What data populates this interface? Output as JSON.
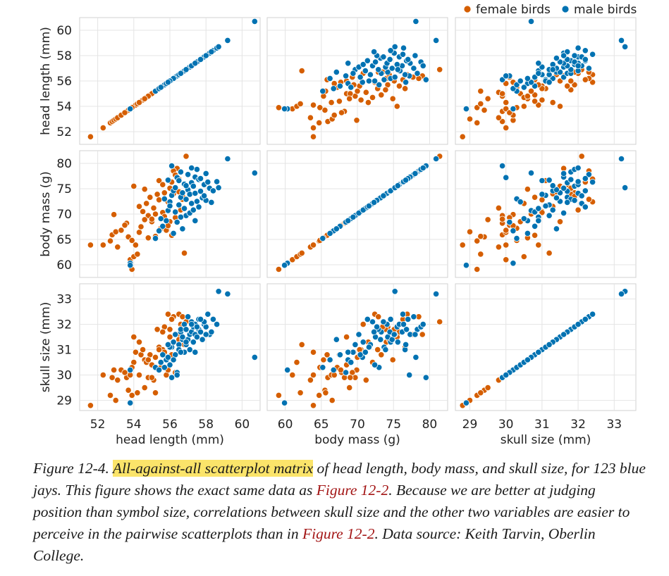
{
  "legend": {
    "position": "top-right",
    "items": [
      {
        "label": "female birds",
        "color": "#d55e00"
      },
      {
        "label": "male birds",
        "color": "#0072b2"
      }
    ]
  },
  "caption": {
    "prefix": "Figure 12-4. ",
    "highlight": "All-against-all scatterplot matrix",
    "text1": " of head length, body mass, and skull size, for 123 blue jays. This figure shows the exact same data as ",
    "link1": "Figure 12-2",
    "text2": ". Because we are better at judging position than symbol size, correlations between skull size and the other two variables are easier to perceive in the pairwise scatterplots than in ",
    "link2": "Figure 12-2",
    "text3": ". Data source: Keith Tarvin, Oberlin College."
  },
  "chart_data": {
    "type": "scatter",
    "grid": true,
    "variables": [
      {
        "key": "head",
        "label": "head length (mm)",
        "range": [
          51,
          61
        ],
        "ticks": [
          52,
          54,
          56,
          58,
          60
        ]
      },
      {
        "key": "mass",
        "label": "body mass (g)",
        "range": [
          57.5,
          82.5
        ],
        "ticks": [
          60,
          65,
          70,
          75,
          80
        ]
      },
      {
        "key": "skull",
        "label": "skull size (mm)",
        "range": [
          28.6,
          33.6
        ],
        "ticks": [
          29,
          30,
          31,
          32,
          33
        ]
      }
    ],
    "series": [
      {
        "name": "female birds",
        "color": "#d55e00",
        "points": [
          [
            51.6,
            63.9,
            28.8
          ],
          [
            52.3,
            63.9,
            30.0
          ],
          [
            52.7,
            64.7,
            29.2
          ],
          [
            52.8,
            65.9,
            29.9
          ],
          [
            52.9,
            69.9,
            30.2
          ],
          [
            53.0,
            66.5,
            29.0
          ],
          [
            53.1,
            63.5,
            29.8
          ],
          [
            53.3,
            66.8,
            30.2
          ],
          [
            53.6,
            68.2,
            29.9
          ],
          [
            53.7,
            65.5,
            29.4
          ],
          [
            53.8,
            61.0,
            30.0
          ],
          [
            53.9,
            59.1,
            29.2
          ],
          [
            54.0,
            61.6,
            30.5
          ],
          [
            54.0,
            75.5,
            31.5
          ],
          [
            54.1,
            63.9,
            30.9
          ],
          [
            54.2,
            62.1,
            29.3
          ],
          [
            54.3,
            66.4,
            30.0
          ],
          [
            54.4,
            67.5,
            30.8
          ],
          [
            54.5,
            70.5,
            31.0
          ],
          [
            54.6,
            74.9,
            30.6
          ],
          [
            54.8,
            69.7,
            29.9
          ],
          [
            54.9,
            73.3,
            30.8
          ],
          [
            55.0,
            68.5,
            30.4
          ],
          [
            55.1,
            71.2,
            29.8
          ],
          [
            55.2,
            65.6,
            29.3
          ],
          [
            55.4,
            76.6,
            31.1
          ],
          [
            55.5,
            67.2,
            30.3
          ],
          [
            55.6,
            70.3,
            31.0
          ],
          [
            55.7,
            74.2,
            31.9
          ],
          [
            55.8,
            66.8,
            30.0
          ],
          [
            55.9,
            72.4,
            32.4
          ],
          [
            56.0,
            68.5,
            31.5
          ],
          [
            56.1,
            65.8,
            30.8
          ],
          [
            56.2,
            74.0,
            31.3
          ],
          [
            56.3,
            69.3,
            30.1
          ],
          [
            56.4,
            79.0,
            31.6
          ],
          [
            56.5,
            76.9,
            32.4
          ],
          [
            56.6,
            70.8,
            32.0
          ],
          [
            56.7,
            72.9,
            32.3
          ],
          [
            56.8,
            62.3,
            31.2
          ],
          [
            56.9,
            81.4,
            32.1
          ],
          [
            55.3,
            73.9,
            31.8
          ],
          [
            54.7,
            72.1,
            30.5
          ],
          [
            56.2,
            78.5,
            32.3
          ],
          [
            55.6,
            75.8,
            31.7
          ],
          [
            53.5,
            67.8,
            30.1
          ],
          [
            55.0,
            69.0,
            29.9
          ],
          [
            56.0,
            75.1,
            31.8
          ],
          [
            54.3,
            71.5,
            31.3
          ],
          [
            55.9,
            67.7,
            30.2
          ],
          [
            56.5,
            74.4,
            31.4
          ],
          [
            54.8,
            65.3,
            30.6
          ],
          [
            55.4,
            72.8,
            31.0
          ],
          [
            53.9,
            64.8,
            30.3
          ],
          [
            56.1,
            76.3,
            32.2
          ],
          [
            55.2,
            70.0,
            30.7
          ],
          [
            54.6,
            68.9,
            29.5
          ],
          [
            56.7,
            73.5,
            31.9
          ],
          [
            55.7,
            69.5,
            30.9
          ],
          [
            56.3,
            77.7,
            31.6
          ]
        ]
      },
      {
        "name": "male birds",
        "color": "#0072b2",
        "points": [
          [
            53.8,
            60.3,
            30.2
          ],
          [
            53.8,
            59.9,
            28.9
          ],
          [
            55.2,
            65.2,
            30.3
          ],
          [
            55.4,
            66.7,
            30.2
          ],
          [
            55.6,
            67.6,
            30.8
          ],
          [
            55.7,
            73.0,
            30.3
          ],
          [
            55.8,
            68.7,
            30.6
          ],
          [
            55.9,
            70.7,
            30.7
          ],
          [
            56.0,
            72.4,
            30.4
          ],
          [
            56.1,
            73.7,
            31.1
          ],
          [
            56.1,
            79.5,
            29.9
          ],
          [
            56.2,
            74.6,
            31.3
          ],
          [
            56.3,
            70.4,
            30.8
          ],
          [
            56.3,
            75.2,
            31.6
          ],
          [
            56.4,
            68.4,
            30.1
          ],
          [
            56.4,
            77.2,
            30.0
          ],
          [
            56.5,
            71.8,
            31.2
          ],
          [
            56.5,
            76.6,
            31.0
          ],
          [
            56.6,
            73.3,
            31.7
          ],
          [
            56.6,
            78.3,
            31.8
          ],
          [
            56.7,
            67.1,
            31.4
          ],
          [
            56.7,
            74.2,
            31.5
          ],
          [
            56.8,
            71.1,
            30.9
          ],
          [
            56.8,
            75.9,
            32.0
          ],
          [
            56.9,
            69.7,
            31.2
          ],
          [
            56.9,
            72.9,
            31.8
          ],
          [
            57.0,
            74.8,
            31.4
          ],
          [
            57.0,
            77.8,
            32.3
          ],
          [
            57.1,
            70.2,
            31.6
          ],
          [
            57.1,
            73.9,
            31.0
          ],
          [
            57.2,
            76.2,
            31.7
          ],
          [
            57.2,
            72.1,
            32.1
          ],
          [
            57.3,
            75.5,
            31.9
          ],
          [
            57.3,
            70.8,
            31.3
          ],
          [
            57.4,
            77.3,
            31.6
          ],
          [
            57.4,
            74.1,
            32.0
          ],
          [
            57.5,
            72.5,
            31.5
          ],
          [
            57.6,
            76.8,
            31.8
          ],
          [
            57.6,
            71.4,
            32.2
          ],
          [
            57.7,
            74.5,
            31.7
          ],
          [
            57.8,
            73.2,
            31.4
          ],
          [
            57.9,
            75.8,
            32.0
          ],
          [
            58.0,
            72.7,
            31.9
          ],
          [
            58.1,
            76.3,
            32.4
          ],
          [
            58.2,
            75.1,
            31.6
          ],
          [
            58.4,
            74.6,
            32.2
          ],
          [
            58.6,
            76.4,
            32.0
          ],
          [
            58.7,
            75.2,
            33.3
          ],
          [
            59.2,
            80.9,
            33.2
          ],
          [
            60.7,
            78.1,
            30.7
          ],
          [
            55.5,
            69.1,
            30.5
          ],
          [
            56.2,
            66.2,
            30.6
          ],
          [
            57.5,
            78.8,
            31.9
          ],
          [
            56.0,
            71.6,
            31.1
          ],
          [
            57.9,
            73.6,
            32.1
          ],
          [
            56.6,
            69.4,
            30.9
          ],
          [
            57.2,
            79.1,
            32.0
          ],
          [
            58.3,
            72.3,
            31.7
          ],
          [
            56.9,
            75.6,
            31.3
          ],
          [
            57.7,
            77.0,
            32.2
          ],
          [
            55.9,
            76.7,
            31.2
          ],
          [
            57.4,
            68.7,
            30.9
          ],
          [
            58.0,
            78.0,
            31.6
          ]
        ]
      }
    ]
  }
}
